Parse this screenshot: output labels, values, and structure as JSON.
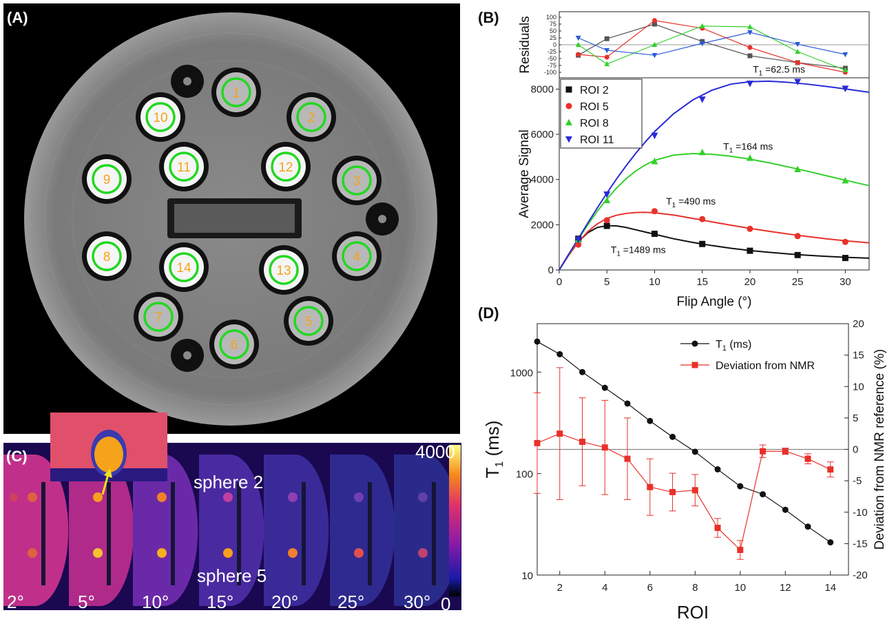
{
  "panels": {
    "a": {
      "label": "(A)",
      "roi_numbers": [
        "1",
        "2",
        "3",
        "4",
        "5",
        "6",
        "7",
        "8",
        "9",
        "10",
        "11",
        "12",
        "13",
        "14"
      ]
    },
    "b": {
      "label": "(B)"
    },
    "c": {
      "label": "(C)",
      "annotations": [
        "sphere 2",
        "sphere  5"
      ],
      "angle_labels": [
        "2°",
        "5°",
        "10°",
        "15°",
        "20°",
        "25°",
        "30°"
      ],
      "colorbar_max": "4000",
      "colorbar_min": "0"
    },
    "d": {
      "label": "(D)"
    }
  },
  "chart_data": [
    {
      "id": "residuals",
      "type": "line",
      "ylabel": "Residuals",
      "xlim": [
        0,
        32.5
      ],
      "ylim": [
        -120,
        120
      ],
      "yticks": [
        "100",
        "75",
        "50",
        "25",
        "0",
        "-25",
        "-50",
        "-75",
        "-100"
      ],
      "x": [
        2,
        5,
        10,
        15,
        20,
        25,
        30
      ],
      "series": [
        {
          "name": "ROI 2",
          "color": "#555555",
          "marker": "square",
          "values": [
            -38,
            22,
            75,
            12,
            -40,
            -65,
            -85
          ]
        },
        {
          "name": "ROI 5",
          "color": "#e8312a",
          "marker": "circle",
          "values": [
            -35,
            -45,
            88,
            60,
            -10,
            -65,
            -100
          ]
        },
        {
          "name": "ROI 8",
          "color": "#32d02a",
          "marker": "triangle",
          "values": [
            0,
            -70,
            0,
            68,
            65,
            -25,
            -92
          ]
        },
        {
          "name": "ROI 11",
          "color": "#2a5ad8",
          "marker": "tri-down",
          "values": [
            25,
            -20,
            -38,
            5,
            45,
            2,
            -35
          ]
        }
      ]
    },
    {
      "id": "signal",
      "type": "line",
      "xlabel": "Flip Angle (°)",
      "ylabel": "Average Signal",
      "xlim": [
        0,
        32.5
      ],
      "ylim": [
        0,
        8500
      ],
      "xticks": [
        0,
        5,
        10,
        15,
        20,
        25,
        30
      ],
      "yticks": [
        0,
        2000,
        4000,
        6000,
        8000
      ],
      "x": [
        2,
        5,
        10,
        15,
        20,
        25,
        30
      ],
      "legend_position": "top-left",
      "series": [
        {
          "name": "ROI 2",
          "color": "#111111",
          "marker": "square",
          "values": [
            1380,
            1950,
            1600,
            1150,
            850,
            660,
            530
          ]
        },
        {
          "name": "ROI 5",
          "color": "#e8312a",
          "marker": "circle",
          "values": [
            1120,
            2200,
            2600,
            2250,
            1820,
            1500,
            1240
          ]
        },
        {
          "name": "ROI 8",
          "color": "#32d02a",
          "marker": "triangle",
          "values": [
            1340,
            3080,
            4800,
            5200,
            4950,
            4450,
            3950
          ]
        },
        {
          "name": "ROI 11",
          "color": "#2a2ad8",
          "marker": "tri-down",
          "values": [
            1350,
            3350,
            5950,
            7550,
            8250,
            8330,
            8030
          ]
        }
      ],
      "fit_curves": [
        {
          "color": "#111111",
          "x": [
            0,
            1,
            2,
            3,
            4,
            5,
            6,
            7,
            8,
            9,
            10,
            12,
            14,
            16,
            18,
            20,
            22,
            24,
            26,
            28,
            30,
            32.5
          ],
          "values": [
            0,
            700,
            1250,
            1650,
            1880,
            1960,
            1950,
            1880,
            1780,
            1680,
            1580,
            1380,
            1220,
            1080,
            960,
            860,
            780,
            710,
            650,
            600,
            560,
            520
          ]
        },
        {
          "color": "#e8312a",
          "x": [
            0,
            1,
            2,
            3,
            4,
            5,
            6,
            7,
            8,
            9,
            10,
            12,
            14,
            16,
            18,
            20,
            22,
            24,
            26,
            28,
            30,
            32.5
          ],
          "values": [
            0,
            650,
            1230,
            1700,
            2040,
            2280,
            2420,
            2500,
            2540,
            2550,
            2530,
            2430,
            2280,
            2130,
            1980,
            1840,
            1710,
            1590,
            1480,
            1380,
            1290,
            1200
          ]
        },
        {
          "color": "#32d02a",
          "x": [
            0,
            1,
            2,
            3,
            4,
            5,
            6,
            7,
            8,
            9,
            10,
            12,
            14,
            16,
            18,
            20,
            22,
            24,
            26,
            28,
            30,
            32.5
          ],
          "values": [
            0,
            690,
            1360,
            2000,
            2600,
            3140,
            3620,
            4030,
            4370,
            4640,
            4850,
            5080,
            5150,
            5120,
            5030,
            4900,
            4740,
            4560,
            4370,
            4170,
            3970,
            3730
          ]
        },
        {
          "color": "#2a2ad8",
          "x": [
            0,
            1,
            2,
            3,
            4,
            5,
            6,
            7,
            8,
            9,
            10,
            12,
            14,
            16,
            18,
            20,
            22,
            24,
            26,
            28,
            30,
            32.5
          ],
          "values": [
            0,
            700,
            1390,
            2080,
            2750,
            3400,
            4020,
            4600,
            5150,
            5650,
            6120,
            6910,
            7520,
            7950,
            8220,
            8330,
            8350,
            8300,
            8220,
            8120,
            8010,
            7860
          ]
        }
      ],
      "annotations": [
        {
          "text": "T",
          "sub": "1",
          "rest": " =62.5 ms",
          "x": 20.3,
          "y": 8730
        },
        {
          "text": "T",
          "sub": "1",
          "rest": " =164 ms",
          "x": 17.2,
          "y": 5320
        },
        {
          "text": "T",
          "sub": "1",
          "rest": " =490 ms",
          "x": 11.2,
          "y": 2900
        },
        {
          "text": "T",
          "sub": "1",
          "rest": " =1489 ms",
          "x": 5.4,
          "y": 740
        }
      ]
    },
    {
      "id": "t1_deviation",
      "type": "line",
      "xlabel": "ROI",
      "ylabel_left": "T",
      "ylabel_left_sub": "1",
      "ylabel_left_rest": " (ms)",
      "ylabel_right": "Deviation from NMR reference (%)",
      "xlim": [
        1,
        14.8
      ],
      "xticks": [
        2,
        4,
        6,
        8,
        10,
        12,
        14
      ],
      "ylim_left": [
        10,
        3000
      ],
      "yscale_left": "log",
      "yticks_left": [
        10,
        100,
        1000
      ],
      "ylim_right": [
        -20,
        20
      ],
      "yticks_right": [
        20,
        15,
        10,
        5,
        0,
        -5,
        -10,
        -15,
        -20
      ],
      "x": [
        1,
        2,
        3,
        4,
        5,
        6,
        7,
        8,
        9,
        10,
        11,
        12,
        13,
        14
      ],
      "legend_position": "top-right",
      "series": [
        {
          "name": "T",
          "name_sub": "1",
          "name_rest": " (ms)",
          "color": "#111111",
          "marker": "circle",
          "axis": "left",
          "values": [
            2000,
            1500,
            1000,
            700,
            490,
            330,
            230,
            164,
            110,
            75,
            62.5,
            44,
            30,
            21
          ]
        },
        {
          "name": "Deviation from NMR reference",
          "legend": "Deviation from NMR",
          "color": "#e8312a",
          "marker": "square",
          "axis": "right",
          "values": [
            1.0,
            2.5,
            1.2,
            0.3,
            -1.5,
            -6.0,
            -6.8,
            -6.5,
            -12.5,
            -16.0,
            -0.3,
            -0.3,
            -1.5,
            -3.2
          ],
          "errors": [
            8.0,
            10.5,
            7.0,
            7.5,
            6.5,
            4.5,
            3.0,
            2.5,
            1.5,
            1.5,
            1.0,
            0.5,
            0.8,
            1.2
          ]
        }
      ]
    }
  ]
}
